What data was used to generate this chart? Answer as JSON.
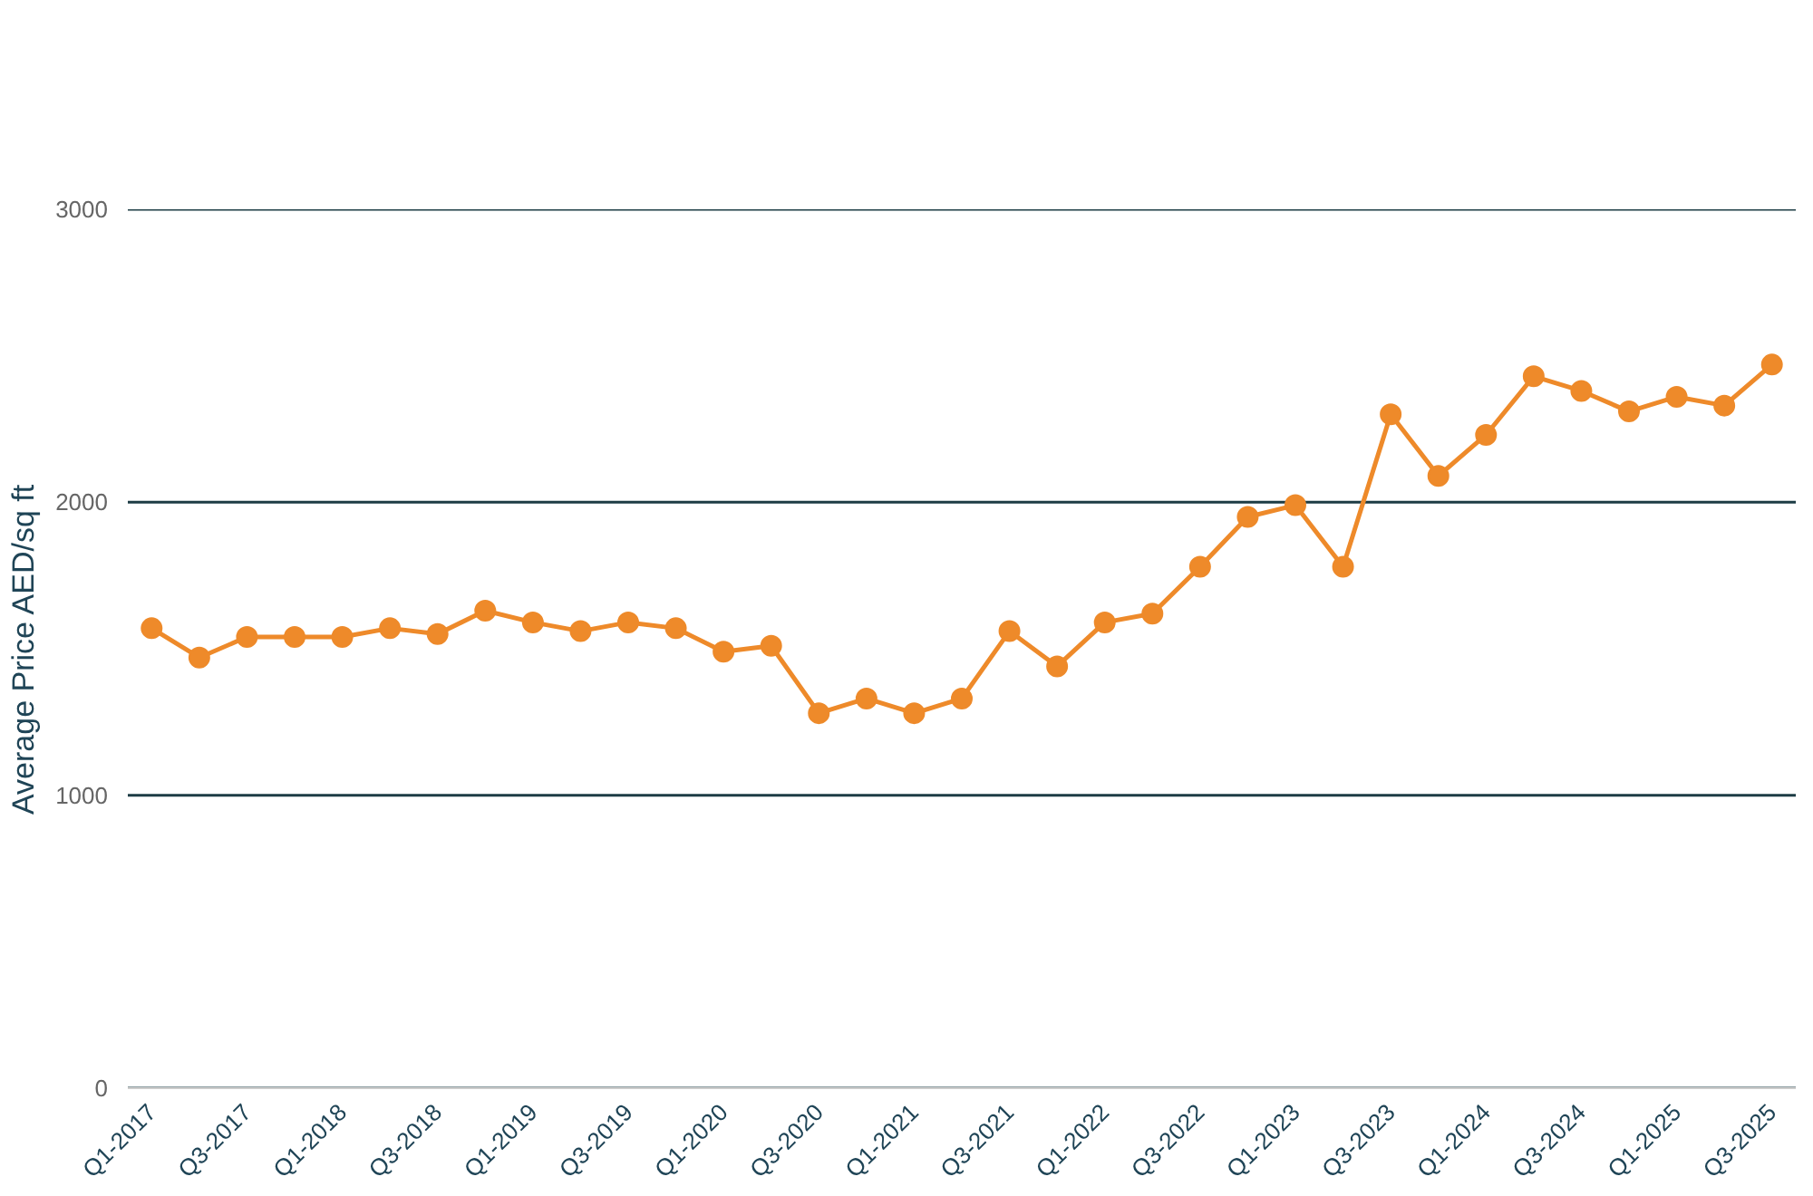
{
  "chart_data": {
    "type": "line",
    "ylabel": "Average Price AED/sq ft",
    "categories": [
      "Q1-2017",
      null,
      "Q3-2017",
      null,
      "Q1-2018",
      null,
      "Q3-2018",
      null,
      "Q1-2019",
      null,
      "Q3-2019",
      null,
      "Q1-2020",
      null,
      "Q3-2020",
      null,
      "Q1-2021",
      null,
      "Q3-2021",
      null,
      "Q1-2022",
      null,
      "Q3-2022",
      null,
      "Q1-2023",
      null,
      "Q3-2023",
      null,
      "Q1-2024",
      null,
      "Q3-2024",
      null,
      "Q1-2025",
      null,
      "Q3-2025"
    ],
    "series": [
      {
        "color": "#ee8a2a",
        "values": [
          1570,
          1470,
          1540,
          1540,
          1540,
          1570,
          1550,
          1630,
          1590,
          1560,
          1590,
          1570,
          1490,
          1510,
          1280,
          1330,
          1280,
          1330,
          1560,
          1440,
          1590,
          1620,
          1780,
          1950,
          1990,
          1780,
          2300,
          2090,
          2230,
          2430,
          2380,
          2310,
          2360,
          2330,
          2470
        ]
      }
    ],
    "ylim": [
      0,
      3000
    ],
    "yticks": [
      0,
      1000,
      2000,
      3000
    ],
    "grid": "y",
    "marker": "circle",
    "line_style": "solid"
  }
}
